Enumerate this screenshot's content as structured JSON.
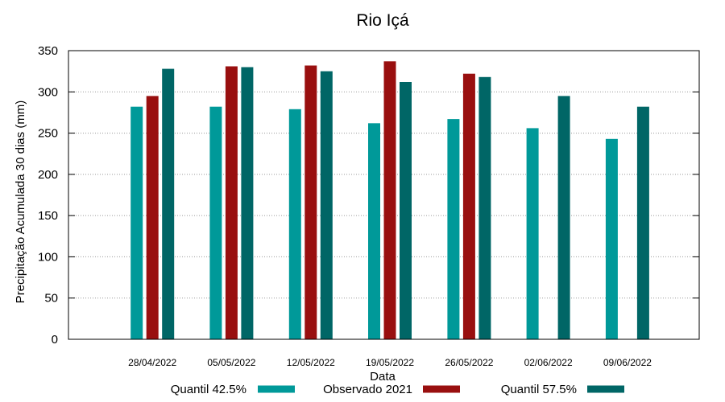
{
  "chart_data": {
    "type": "bar",
    "title": "Rio Içá",
    "xlabel": "Data",
    "ylabel": "Precipitação Acumulada 30 dias (mm)",
    "ylim": [
      0,
      350
    ],
    "yticks": [
      0,
      50,
      100,
      150,
      200,
      250,
      300,
      350
    ],
    "grid": true,
    "legend_position": "bottom",
    "categories": [
      "28/04/2022",
      "05/05/2022",
      "12/05/2022",
      "19/05/2022",
      "26/05/2022",
      "02/06/2022",
      "09/06/2022"
    ],
    "series": [
      {
        "name": "Quantil 42.5%",
        "color": "#009999",
        "values": [
          282,
          282,
          279,
          262,
          267,
          256,
          243
        ]
      },
      {
        "name": "Observado 2021",
        "color": "#990f0f",
        "values": [
          295,
          331,
          332,
          337,
          322,
          null,
          null
        ]
      },
      {
        "name": "Quantil 57.5%",
        "color": "#006666",
        "values": [
          328,
          330,
          325,
          312,
          318,
          295,
          282
        ]
      }
    ]
  }
}
